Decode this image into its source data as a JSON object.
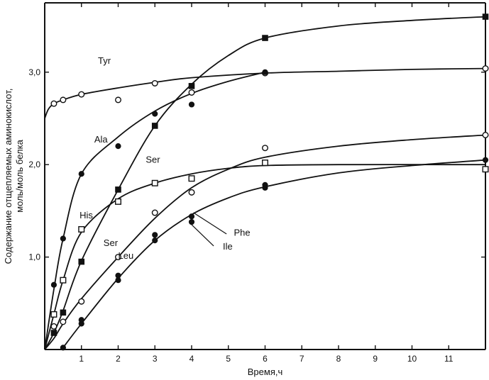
{
  "chart_data": {
    "type": "line",
    "xlabel": "Время,ч",
    "ylabel_line1": "Содержание отщепляемых аминокислот,",
    "ylabel_line2": "моль/моль белка",
    "xlim": [
      0,
      12
    ],
    "ylim": [
      0,
      3.75
    ],
    "x_ticks": [
      1,
      2,
      3,
      4,
      5,
      6,
      7,
      8,
      9,
      10,
      11
    ],
    "x_tick_labels": [
      "1",
      "2",
      "3",
      "4",
      "5",
      "6",
      "7",
      "8",
      "9",
      "10",
      "11"
    ],
    "y_ticks": [
      1.0,
      2.0,
      3.0
    ],
    "y_tick_labels": [
      "1,0",
      "2,0",
      "3,0"
    ],
    "grid": false,
    "series": [
      {
        "name": "Tyr",
        "marker": "open-circle",
        "points": [
          [
            0.25,
            2.66
          ],
          [
            0.5,
            2.7
          ],
          [
            1,
            2.76
          ],
          [
            2,
            2.7
          ],
          [
            3,
            2.88
          ],
          [
            4,
            2.78
          ],
          [
            6,
            2.99
          ],
          [
            12,
            3.04
          ]
        ],
        "curve": [
          [
            0,
            2.5
          ],
          [
            0.1,
            2.6
          ],
          [
            0.25,
            2.66
          ],
          [
            0.5,
            2.7
          ],
          [
            1,
            2.76
          ],
          [
            2,
            2.83
          ],
          [
            3,
            2.89
          ],
          [
            4,
            2.94
          ],
          [
            6,
            2.99
          ],
          [
            8,
            3.01
          ],
          [
            10,
            3.03
          ],
          [
            12,
            3.04
          ]
        ]
      },
      {
        "name": "Ala",
        "marker": "filled-circle",
        "points": [
          [
            0.25,
            0.7
          ],
          [
            0.5,
            1.2
          ],
          [
            1,
            1.9
          ],
          [
            2,
            2.2
          ],
          [
            3,
            2.55
          ],
          [
            4,
            2.65
          ],
          [
            6,
            3.0
          ]
        ],
        "curve": [
          [
            0,
            0
          ],
          [
            0.25,
            0.65
          ],
          [
            0.5,
            1.2
          ],
          [
            1,
            1.9
          ],
          [
            2,
            2.3
          ],
          [
            3,
            2.58
          ],
          [
            4,
            2.77
          ],
          [
            5,
            2.9
          ],
          [
            6,
            3.0
          ]
        ]
      },
      {
        "name": "Ser",
        "marker": "filled-square",
        "points": [
          [
            0.25,
            0.18
          ],
          [
            0.5,
            0.4
          ],
          [
            1,
            0.95
          ],
          [
            2,
            1.73
          ],
          [
            3,
            2.42
          ],
          [
            4,
            2.85
          ],
          [
            6,
            3.37
          ],
          [
            12,
            3.6
          ]
        ],
        "curve": [
          [
            0,
            0
          ],
          [
            0.25,
            0.18
          ],
          [
            0.5,
            0.42
          ],
          [
            1,
            0.96
          ],
          [
            2,
            1.73
          ],
          [
            3,
            2.42
          ],
          [
            4,
            2.87
          ],
          [
            5,
            3.18
          ],
          [
            6,
            3.37
          ],
          [
            8,
            3.5
          ],
          [
            10,
            3.56
          ],
          [
            12,
            3.6
          ]
        ]
      },
      {
        "name": "His",
        "marker": "open-square",
        "points": [
          [
            0.25,
            0.38
          ],
          [
            0.5,
            0.75
          ],
          [
            1,
            1.3
          ],
          [
            2,
            1.6
          ],
          [
            3,
            1.8
          ],
          [
            4,
            1.85
          ],
          [
            6,
            2.02
          ],
          [
            12,
            1.95
          ]
        ],
        "curve": [
          [
            0,
            0
          ],
          [
            0.25,
            0.38
          ],
          [
            0.5,
            0.75
          ],
          [
            1,
            1.27
          ],
          [
            2,
            1.63
          ],
          [
            3,
            1.8
          ],
          [
            4,
            1.9
          ],
          [
            5,
            1.96
          ],
          [
            6,
            1.99
          ],
          [
            8,
            2.0
          ],
          [
            12,
            2.0
          ]
        ]
      },
      {
        "name": "Leu",
        "marker": "open-circle",
        "points": [
          [
            0.25,
            0.25
          ],
          [
            0.5,
            0.3
          ],
          [
            1,
            0.52
          ],
          [
            2,
            1.0
          ],
          [
            3,
            1.48
          ],
          [
            4,
            1.7
          ],
          [
            6,
            2.18
          ],
          [
            12,
            2.32
          ]
        ],
        "curve": [
          [
            0,
            0
          ],
          [
            0.25,
            0.12
          ],
          [
            0.5,
            0.28
          ],
          [
            1,
            0.55
          ],
          [
            2,
            1.0
          ],
          [
            3,
            1.42
          ],
          [
            4,
            1.75
          ],
          [
            5,
            1.95
          ],
          [
            6,
            2.08
          ],
          [
            8,
            2.2
          ],
          [
            10,
            2.27
          ],
          [
            12,
            2.32
          ]
        ]
      },
      {
        "name": "Ile",
        "marker": "filled-circle",
        "points": [
          [
            0.5,
            0.02
          ],
          [
            1,
            0.28
          ],
          [
            2,
            0.75
          ],
          [
            3,
            1.18
          ],
          [
            4,
            1.38
          ],
          [
            6,
            1.75
          ],
          [
            12,
            2.05
          ]
        ],
        "curve": [
          [
            0.5,
            0.02
          ],
          [
            1,
            0.28
          ],
          [
            2,
            0.77
          ],
          [
            3,
            1.18
          ],
          [
            4,
            1.46
          ],
          [
            5,
            1.64
          ],
          [
            6,
            1.76
          ],
          [
            8,
            1.91
          ],
          [
            10,
            1.99
          ],
          [
            12,
            2.05
          ]
        ]
      },
      {
        "name": "Phe",
        "marker": "filled-circle",
        "points": [
          [
            1,
            0.32
          ],
          [
            2,
            0.8
          ],
          [
            3,
            1.24
          ],
          [
            4,
            1.44
          ],
          [
            6,
            1.78
          ]
        ],
        "curve": []
      }
    ],
    "labels": [
      {
        "text": "Tyr",
        "x": 1.45,
        "y": 3.09
      },
      {
        "text": "Ala",
        "x": 1.35,
        "y": 2.24
      },
      {
        "text": "Ser",
        "x": 2.75,
        "y": 2.02
      },
      {
        "text": "His",
        "x": 0.95,
        "y": 1.42
      },
      {
        "text": "Ser",
        "x": 1.6,
        "y": 1.12
      },
      {
        "text": "Leu",
        "x": 2.0,
        "y": 0.98
      },
      {
        "text": "Phe",
        "x": 5.15,
        "y": 1.23
      },
      {
        "text": "Ile",
        "x": 4.85,
        "y": 1.08
      }
    ],
    "pointer_lines": [
      {
        "from": [
          4.05,
          1.48
        ],
        "to": [
          4.95,
          1.25
        ]
      },
      {
        "from": [
          4.0,
          1.35
        ],
        "to": [
          4.6,
          1.12
        ]
      }
    ]
  }
}
